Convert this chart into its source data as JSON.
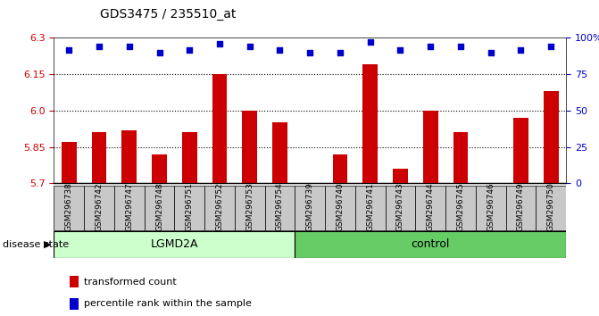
{
  "title": "GDS3475 / 235510_at",
  "samples": [
    "GSM296738",
    "GSM296742",
    "GSM296747",
    "GSM296748",
    "GSM296751",
    "GSM296752",
    "GSM296753",
    "GSM296754",
    "GSM296739",
    "GSM296740",
    "GSM296741",
    "GSM296743",
    "GSM296744",
    "GSM296745",
    "GSM296746",
    "GSM296749",
    "GSM296750"
  ],
  "bar_values": [
    5.87,
    5.91,
    5.92,
    5.82,
    5.91,
    6.15,
    6.0,
    5.95,
    5.7,
    5.82,
    6.19,
    5.76,
    6.0,
    5.91,
    5.7,
    5.97,
    6.08
  ],
  "percentile_values": [
    92,
    94,
    94,
    90,
    92,
    96,
    94,
    92,
    90,
    90,
    97,
    92,
    94,
    94,
    90,
    92,
    94
  ],
  "bar_color": "#cc0000",
  "percentile_color": "#0000cc",
  "ylim_left": [
    5.7,
    6.3
  ],
  "ylim_right": [
    0,
    100
  ],
  "yticks_left": [
    5.7,
    5.85,
    6.0,
    6.15,
    6.3
  ],
  "yticks_right": [
    0,
    25,
    50,
    75,
    100
  ],
  "ytick_labels_right": [
    "0",
    "25",
    "50",
    "75",
    "100%"
  ],
  "grid_values": [
    5.85,
    6.0,
    6.15
  ],
  "lgmd2a_count": 8,
  "control_count": 9,
  "lgmd2a_color": "#ccffcc",
  "control_color": "#66cc66",
  "label_bar": "transformed count",
  "label_pct": "percentile rank within the sample",
  "disease_state_label": "disease state",
  "xtick_bg_color": "#c8c8c8",
  "plot_bg_color": "#ffffff",
  "bar_width": 0.5
}
